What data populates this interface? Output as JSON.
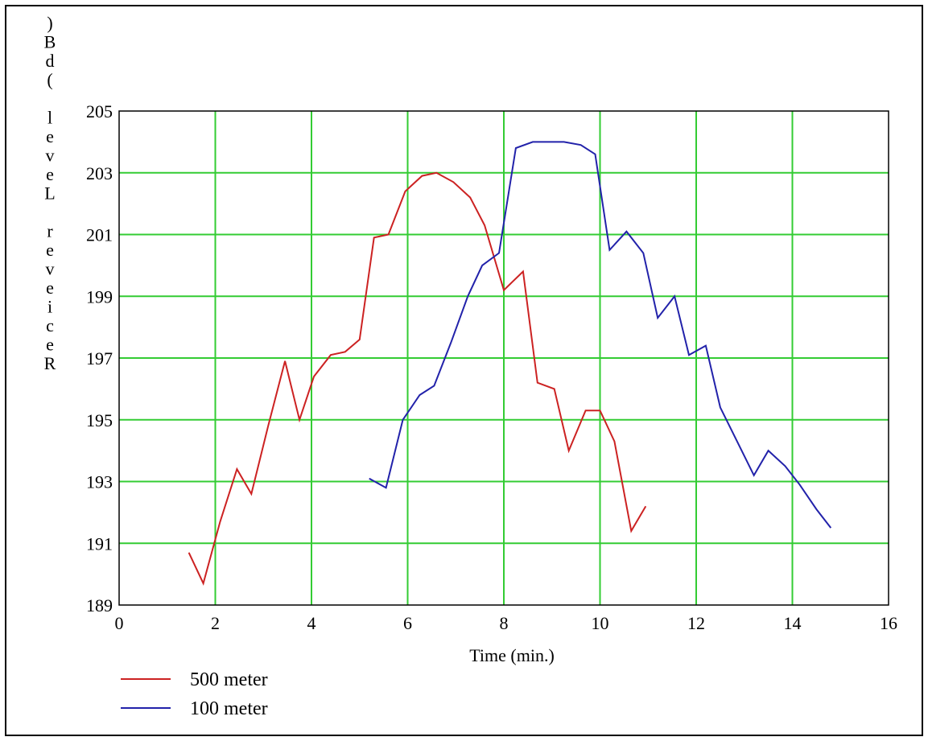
{
  "chart_data": {
    "type": "line",
    "xlabel": "Time (min.)",
    "ylabel": "Reciever Level (dB)",
    "xlim": [
      0,
      16
    ],
    "ylim": [
      189,
      205
    ],
    "xticks": [
      0,
      2,
      4,
      6,
      8,
      10,
      12,
      14,
      16
    ],
    "yticks": [
      189,
      191,
      193,
      195,
      197,
      199,
      201,
      203,
      205
    ],
    "x_tick_labels": [
      "0",
      "2",
      "4",
      "6",
      "8",
      "10",
      "12",
      "14",
      "16"
    ],
    "y_tick_labels": [
      "189",
      "191",
      "193",
      "195",
      "197",
      "199",
      "201",
      "203",
      "205"
    ],
    "grid": true,
    "legend_position": "bottom-left",
    "series": [
      {
        "name": "500 meter",
        "color": "#cc2222",
        "x": [
          1.45,
          1.75,
          2.1,
          2.45,
          2.75,
          3.1,
          3.45,
          3.75,
          4.05,
          4.4,
          4.7,
          5.0,
          5.3,
          5.6,
          5.95,
          6.3,
          6.6,
          6.95,
          7.3,
          7.6,
          8.0,
          8.4,
          8.7,
          9.05,
          9.35,
          9.7,
          10.0,
          10.3,
          10.65,
          10.95
        ],
        "y": [
          190.7,
          189.7,
          191.7,
          193.4,
          192.6,
          194.8,
          196.9,
          195.0,
          196.4,
          197.1,
          197.2,
          197.6,
          200.9,
          201.0,
          202.4,
          202.9,
          203.0,
          202.7,
          202.2,
          201.3,
          199.2,
          199.8,
          196.2,
          196.0,
          194.0,
          195.3,
          195.3,
          194.3,
          191.4,
          192.2
        ]
      },
      {
        "name": "100 meter",
        "color": "#2222aa",
        "x": [
          5.2,
          5.55,
          5.9,
          6.25,
          6.55,
          6.9,
          7.25,
          7.55,
          7.9,
          8.25,
          8.6,
          8.95,
          9.25,
          9.6,
          9.9,
          10.2,
          10.55,
          10.9,
          11.2,
          11.55,
          11.85,
          12.2,
          12.5,
          12.85,
          13.2,
          13.5,
          13.85,
          14.15,
          14.5,
          14.8
        ],
        "y": [
          193.1,
          192.8,
          195.0,
          195.8,
          196.1,
          197.5,
          199.0,
          200.0,
          200.4,
          203.8,
          204.0,
          204.0,
          204.0,
          203.9,
          203.6,
          200.5,
          201.1,
          200.4,
          198.3,
          199.0,
          197.1,
          197.4,
          195.4,
          194.3,
          193.2,
          194.0,
          193.5,
          192.9,
          192.1,
          191.5
        ]
      }
    ]
  }
}
